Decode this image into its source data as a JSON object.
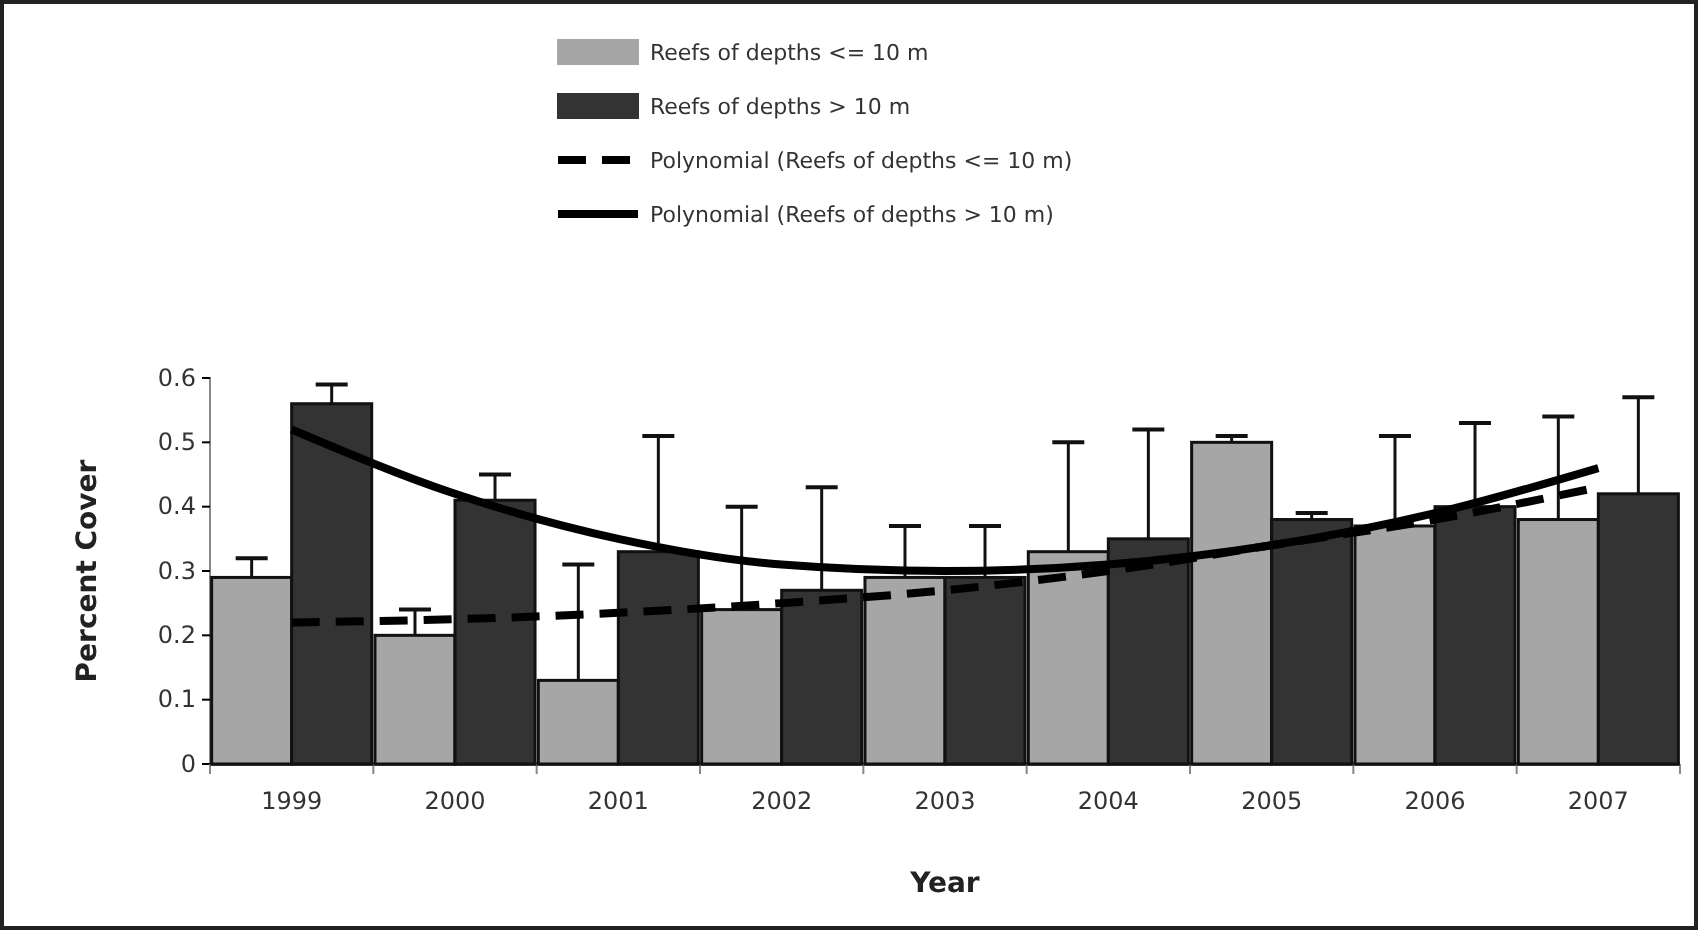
{
  "chart_data": {
    "type": "bar",
    "categories": [
      "1999",
      "2000",
      "2001",
      "2002",
      "2003",
      "2004",
      "2005",
      "2006",
      "2007"
    ],
    "series": [
      {
        "name": "Reefs of depths <= 10 m",
        "color": "#a6a6a6",
        "values": [
          0.29,
          0.2,
          0.13,
          0.24,
          0.29,
          0.33,
          0.5,
          0.37,
          0.38
        ],
        "errors": [
          [
            0.29,
            0.32
          ],
          [
            0.2,
            0.24
          ],
          [
            0.13,
            0.31
          ],
          [
            0.24,
            0.4
          ],
          [
            0.29,
            0.37
          ],
          [
            0.33,
            0.5
          ],
          [
            0.5,
            0.51
          ],
          [
            0.37,
            0.51
          ],
          [
            0.38,
            0.54
          ]
        ]
      },
      {
        "name": "Reefs of depths > 10 m",
        "color": "#333333",
        "values": [
          0.56,
          0.41,
          0.33,
          0.27,
          0.29,
          0.35,
          0.38,
          0.4,
          0.42
        ],
        "errors": [
          [
            0.56,
            0.59
          ],
          [
            0.41,
            0.45
          ],
          [
            0.33,
            0.51
          ],
          [
            0.27,
            0.43
          ],
          [
            0.29,
            0.37
          ],
          [
            0.35,
            0.52
          ],
          [
            0.38,
            0.39
          ],
          [
            0.4,
            0.53
          ],
          [
            0.42,
            0.57
          ]
        ]
      },
      {
        "name": "Polynomial (Reefs of depths <= 10 m)",
        "type": "line",
        "line_style": "dashed",
        "color": "#000000",
        "values": [
          0.22,
          0.225,
          0.235,
          0.25,
          0.27,
          0.3,
          0.34,
          0.38,
          0.43
        ]
      },
      {
        "name": "Polynomial (Reefs of depths > 10 m)",
        "type": "line",
        "line_style": "solid",
        "color": "#000000",
        "values": [
          0.52,
          0.42,
          0.35,
          0.31,
          0.3,
          0.31,
          0.34,
          0.39,
          0.46
        ]
      }
    ],
    "xlabel": "Year",
    "ylabel": "Percent Cover",
    "ylim": [
      0,
      0.6
    ],
    "yticks": [
      0,
      0.1,
      0.2,
      0.3,
      0.4,
      0.5,
      0.6
    ],
    "legend": "top",
    "grid": false
  }
}
